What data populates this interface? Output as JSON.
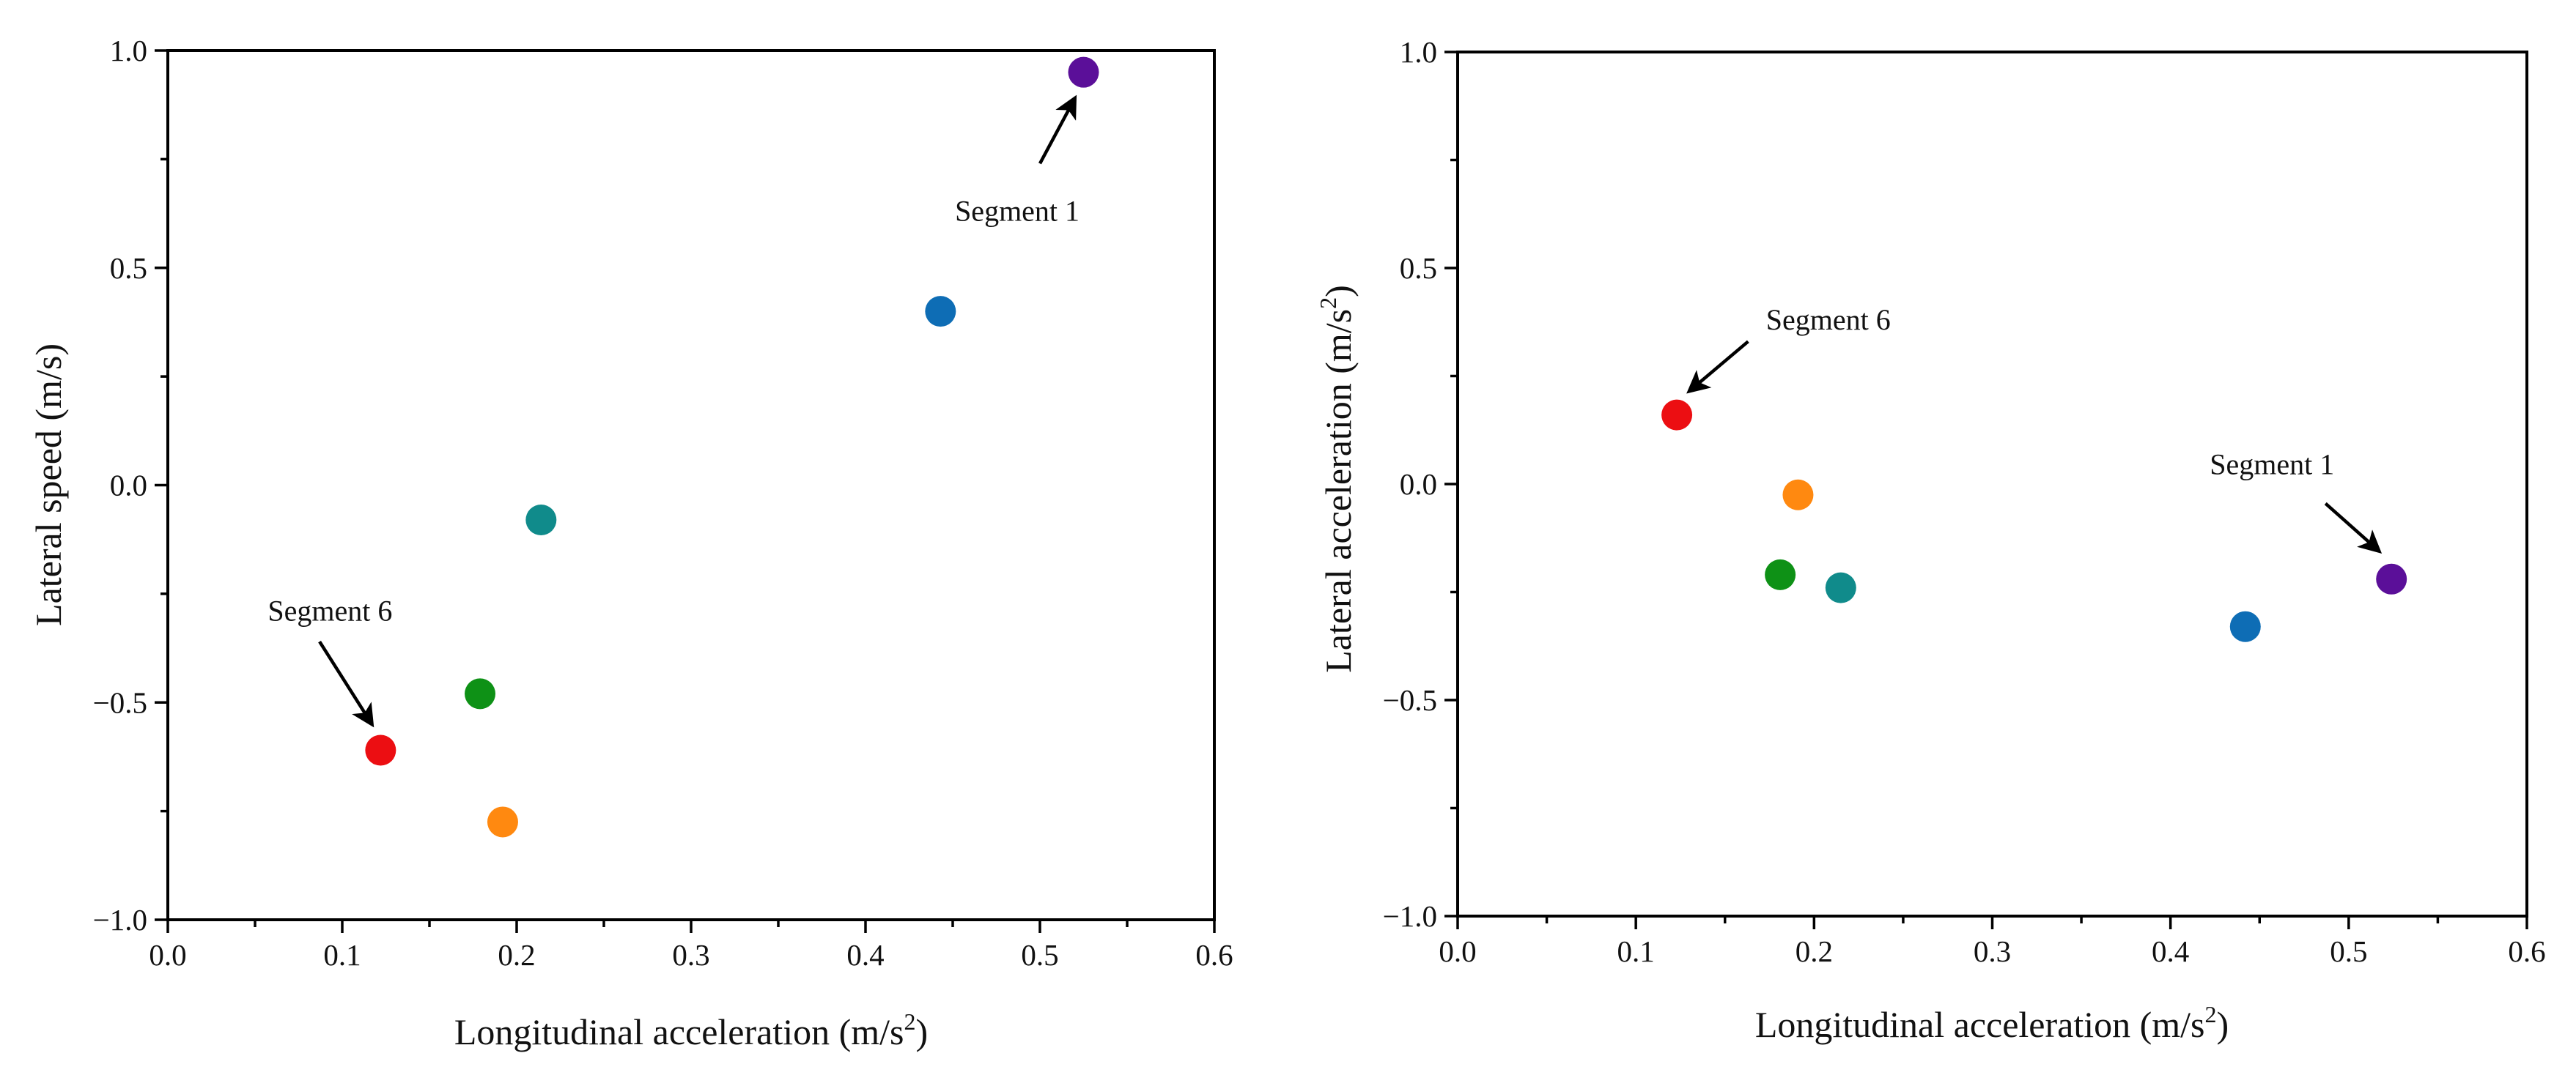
{
  "chart_data": [
    {
      "type": "scatter",
      "title": "",
      "xlabel": "Longitudinal acceleration (m/s",
      "xlabel_sup": "2",
      "xlabel_end": ")",
      "ylabel": "Lateral speed (m/s)",
      "ylabel_sup": "",
      "ylabel_end": "",
      "xlim": [
        0.0,
        0.6
      ],
      "ylim": [
        -1.0,
        1.0
      ],
      "xticks": [
        0.0,
        0.1,
        0.2,
        0.3,
        0.4,
        0.5,
        0.6
      ],
      "xtick_labels": [
        "0.0",
        "0.1",
        "0.2",
        "0.3",
        "0.4",
        "0.5",
        "0.6"
      ],
      "yticks": [
        -1.0,
        -0.5,
        0.0,
        0.5,
        1.0
      ],
      "ytick_labels": [
        "−1.0",
        "−0.5",
        "0.0",
        "0.5",
        "1.0"
      ],
      "grid": false,
      "points": [
        {
          "x": 0.525,
          "y": 0.95,
          "color": "#5b0f99"
        },
        {
          "x": 0.443,
          "y": 0.4,
          "color": "#0e6db5"
        },
        {
          "x": 0.214,
          "y": -0.08,
          "color": "#108b8b"
        },
        {
          "x": 0.179,
          "y": -0.48,
          "color": "#0e9116"
        },
        {
          "x": 0.192,
          "y": -0.775,
          "color": "#ff8910"
        },
        {
          "x": 0.122,
          "y": -0.61,
          "color": "#ec0e12"
        }
      ],
      "annotations": [
        {
          "text": "Segment 1",
          "x": 0.525,
          "y": 0.95,
          "text_x": 0.487,
          "text_y": 0.63,
          "arrow_from": [
            0.5,
            0.74
          ],
          "arrow_to": [
            0.52,
            0.89
          ]
        },
        {
          "text": "Segment 6",
          "x": 0.122,
          "y": -0.61,
          "text_x": 0.093,
          "text_y": -0.29,
          "arrow_from": [
            0.087,
            -0.36
          ],
          "arrow_to": [
            0.117,
            -0.55
          ]
        }
      ]
    },
    {
      "type": "scatter",
      "title": "",
      "xlabel": "Longitudinal acceleration (m/s",
      "xlabel_sup": "2",
      "xlabel_end": ")",
      "ylabel": "Lateral acceleration (m/s",
      "ylabel_sup": "2",
      "ylabel_end": ")",
      "xlim": [
        0.0,
        0.6
      ],
      "ylim": [
        -1.0,
        1.0
      ],
      "xticks": [
        0.0,
        0.1,
        0.2,
        0.3,
        0.4,
        0.5,
        0.6
      ],
      "xtick_labels": [
        "0.0",
        "0.1",
        "0.2",
        "0.3",
        "0.4",
        "0.5",
        "0.6"
      ],
      "yticks": [
        -1.0,
        -0.5,
        0.0,
        0.5,
        1.0
      ],
      "ytick_labels": [
        "−1.0",
        "−0.5",
        "0.0",
        "0.5",
        "1.0"
      ],
      "grid": false,
      "points": [
        {
          "x": 0.524,
          "y": -0.22,
          "color": "#5b0f99"
        },
        {
          "x": 0.442,
          "y": -0.33,
          "color": "#0e6db5"
        },
        {
          "x": 0.215,
          "y": -0.24,
          "color": "#108b8b"
        },
        {
          "x": 0.181,
          "y": -0.21,
          "color": "#0e9116"
        },
        {
          "x": 0.191,
          "y": -0.025,
          "color": "#ff8910"
        },
        {
          "x": 0.123,
          "y": 0.16,
          "color": "#ec0e12"
        }
      ],
      "annotations": [
        {
          "text": "Segment 6",
          "x": 0.123,
          "y": 0.16,
          "text_x": 0.208,
          "text_y": 0.38,
          "arrow_from": [
            0.163,
            0.33
          ],
          "arrow_to": [
            0.13,
            0.215
          ]
        },
        {
          "text": "Segment 1",
          "x": 0.524,
          "y": -0.22,
          "text_x": 0.457,
          "text_y": 0.045,
          "arrow_from": [
            0.487,
            -0.045
          ],
          "arrow_to": [
            0.517,
            -0.155
          ]
        }
      ]
    }
  ]
}
